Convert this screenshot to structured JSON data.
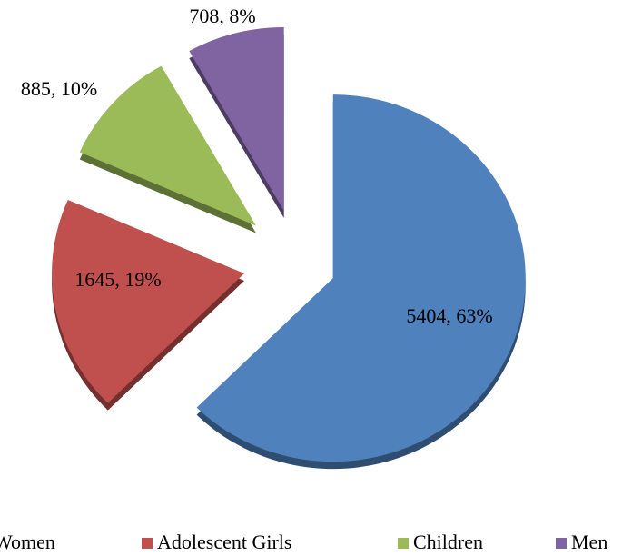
{
  "chart_data": {
    "type": "pie",
    "categories": [
      "Women",
      "Adolescent Girls",
      "Children",
      "Men"
    ],
    "values": [
      5404,
      1645,
      885,
      708
    ],
    "value_labels": [
      "5404, 63%",
      "1645, 19%",
      "885, 10%",
      "708, 8%"
    ],
    "colors": [
      "#4f81bd",
      "#c0504d",
      "#9bbb59",
      "#8064a2"
    ],
    "legend": "bottom"
  }
}
